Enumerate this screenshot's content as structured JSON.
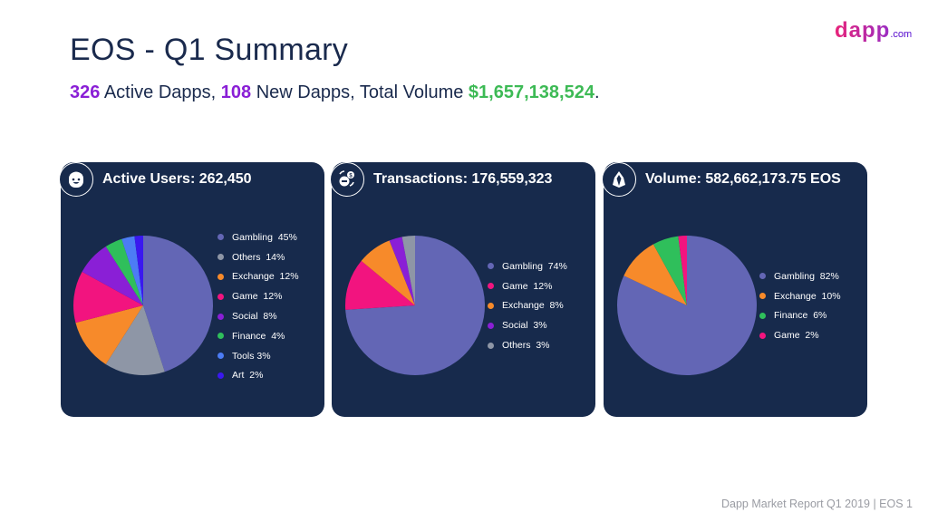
{
  "header": {
    "title": "EOS - Q1 Summary",
    "subtitle": {
      "active_dapps": "326",
      "active_dapps_label": " Active Dapps, ",
      "new_dapps": "108",
      "new_dapps_label": " New Dapps, Total Volume ",
      "total_volume": "$1,657,138,524",
      "end": "."
    },
    "logo": {
      "text": "dapp",
      "suffix": ".com"
    }
  },
  "colors": {
    "Gambling": "#6366b5",
    "Others": "#8e96a6",
    "Exchange": "#f78a2a",
    "Game": "#f2147f",
    "Social": "#8a1fd6",
    "Finance": "#2fbf5b",
    "Tools": "#4c7cf5",
    "Art": "#3a18f0"
  },
  "chart_data": [
    {
      "type": "pie",
      "title": "Active Users: 262,450",
      "icon": "user-face-icon",
      "categories": [
        "Gambling",
        "Others",
        "Exchange",
        "Game",
        "Social",
        "Finance",
        "Tools",
        "Art"
      ],
      "values": [
        45,
        14,
        12,
        12,
        8,
        4,
        3,
        2
      ],
      "labels": [
        "Gambling  45%",
        "Others  14%",
        "Exchange  12%",
        "Game  12%",
        "Social  8%",
        "Finance  4%",
        "Tools 3%",
        "Art  2%"
      ],
      "legend": "right"
    },
    {
      "type": "pie",
      "title": "Transactions: 176,559,323",
      "icon": "transaction-exchange-icon",
      "categories": [
        "Gambling",
        "Game",
        "Exchange",
        "Social",
        "Others"
      ],
      "values": [
        74,
        12,
        8,
        3,
        3
      ],
      "labels": [
        "Gambling  74%",
        "Game  12%",
        "Exchange  8%",
        "Social  3%",
        "Others  3%"
      ],
      "legend": "right"
    },
    {
      "type": "pie",
      "title": "Volume: 582,662,173.75 EOS",
      "icon": "eos-logo-icon",
      "categories": [
        "Gambling",
        "Exchange",
        "Finance",
        "Game"
      ],
      "values": [
        82,
        10,
        6,
        2
      ],
      "labels": [
        "Gambling  82%",
        "Exchange  10%",
        "Finance  6%",
        "Game  2%"
      ],
      "legend": "right"
    }
  ],
  "footer": "Dapp Market Report Q1 2019  |  EOS 1"
}
